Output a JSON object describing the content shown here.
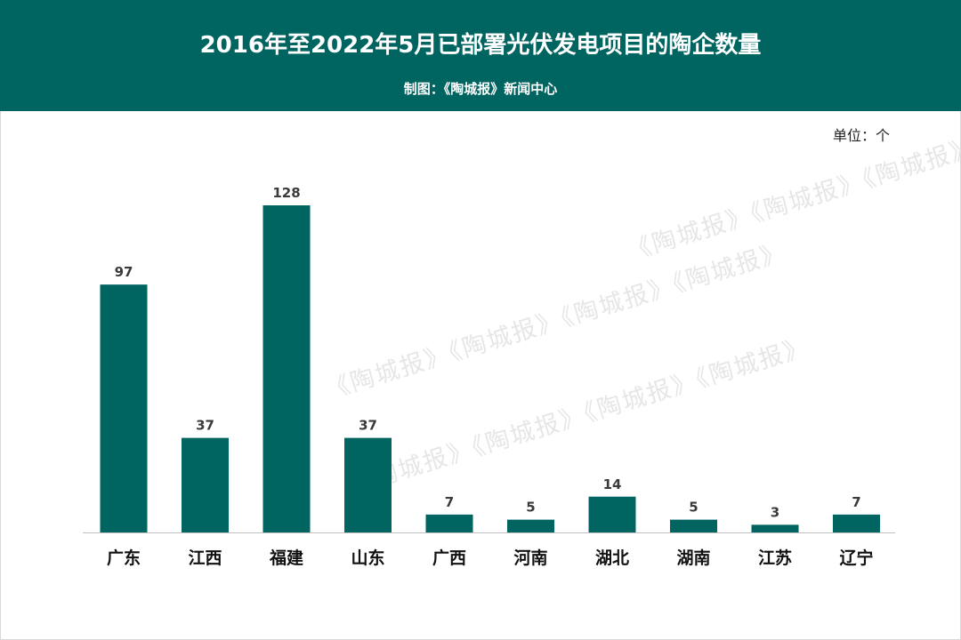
{
  "header": {
    "title": "2016年至2022年5月已部署光伏发电项目的陶企数量",
    "credit": "制图：《陶城报》新闻中心"
  },
  "unit_label": "单位：个",
  "watermark": {
    "text": "《陶城报》《陶城报》《陶城报》《陶城报》"
  },
  "colors": {
    "header_bg": "#006460",
    "bar": "#006460"
  },
  "chart_data": {
    "type": "bar",
    "title": "2016年至2022年5月已部署光伏发电项目的陶企数量",
    "xlabel": "",
    "ylabel": "",
    "unit": "个",
    "categories": [
      "广东",
      "江西",
      "福建",
      "山东",
      "广西",
      "河南",
      "湖北",
      "湖南",
      "江苏",
      "辽宁"
    ],
    "values": [
      97,
      37,
      128,
      37,
      7,
      5,
      14,
      5,
      3,
      7
    ],
    "data_labels": true,
    "grid": false,
    "legend": "none",
    "ylim": [
      0,
      128
    ]
  }
}
